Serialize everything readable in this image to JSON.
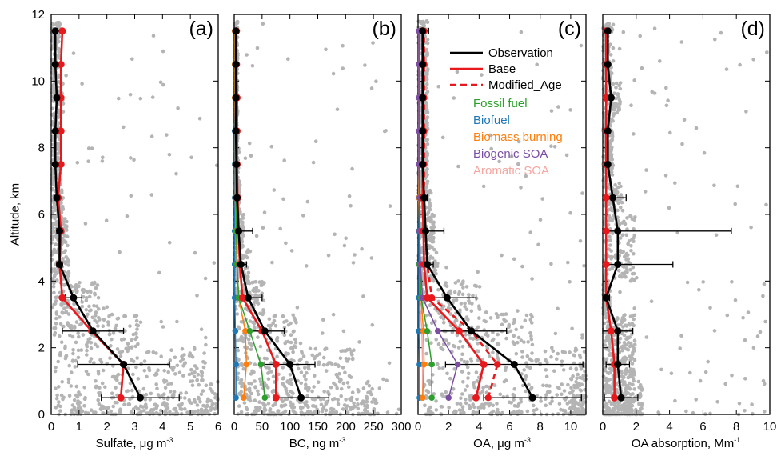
{
  "chart_data": {
    "type": "line",
    "ylabel": "Altitude, km",
    "ylim": [
      0,
      12
    ],
    "yticks": [
      0,
      2,
      4,
      6,
      8,
      10,
      12
    ],
    "altitudes": [
      0.5,
      1.5,
      2.5,
      3.5,
      4.5,
      5.5,
      6.5,
      7.5,
      8.5,
      9.5,
      10.5,
      11.5
    ],
    "legend": {
      "lines": [
        {
          "name": "Observation",
          "color": "#000000",
          "style": "solid"
        },
        {
          "name": "Base",
          "color": "#e8191c",
          "style": "solid"
        },
        {
          "name": "Modified_Age",
          "color": "#e8191c",
          "style": "dashed"
        }
      ],
      "sources": [
        {
          "name": "Fossil fuel",
          "color": "#2ca02c"
        },
        {
          "name": "Biofuel",
          "color": "#1f77b4"
        },
        {
          "name": "Biomass burning",
          "color": "#ff7f0e"
        },
        {
          "name": "Biogenic SOA",
          "color": "#7b4ea3"
        },
        {
          "name": "Aromatic SOA",
          "color": "#f4a6a0"
        }
      ]
    },
    "panels": [
      {
        "label": "(a)",
        "xlabel": "Sulfate, μg m",
        "xlabel_sup": "-3",
        "xlim": [
          0,
          6
        ],
        "xticks": [
          0,
          1,
          2,
          3,
          4,
          5,
          6
        ],
        "observation": [
          3.2,
          2.6,
          1.5,
          0.8,
          0.3,
          0.3,
          0.2,
          0.15,
          0.15,
          0.2,
          0.15,
          0.15
        ],
        "observation_error": [
          1.4,
          1.65,
          1.1,
          0.3,
          0.1,
          0.1,
          0.1,
          0.05,
          0.05,
          0.05,
          0.05,
          0.05
        ],
        "base": [
          2.5,
          2.6,
          1.45,
          0.4,
          0.3,
          0.35,
          0.25,
          0.35,
          0.35,
          0.35,
          0.35,
          0.4
        ],
        "scatter_xmax": 6
      },
      {
        "label": "(b)",
        "xlabel": "BC, ng m",
        "xlabel_sup": "-3",
        "xlim": [
          0,
          300
        ],
        "xticks": [
          0,
          50,
          100,
          150,
          200,
          250,
          300
        ],
        "observation": [
          120,
          100,
          55,
          25,
          12,
          8,
          5,
          4,
          3,
          3,
          3,
          3
        ],
        "observation_error": [
          50,
          45,
          35,
          25,
          10,
          25,
          3,
          2,
          2,
          2,
          2,
          2
        ],
        "base": [
          75,
          75,
          50,
          15,
          10,
          8,
          6,
          5,
          5,
          5,
          4,
          4
        ],
        "fossil": [
          55,
          48,
          28,
          8,
          5,
          4,
          3,
          3,
          3,
          2,
          2,
          2
        ],
        "biofuel": [
          3,
          3,
          2,
          1,
          1,
          1,
          1,
          1,
          1,
          1,
          1,
          1
        ],
        "biomass": [
          17,
          22,
          20,
          8,
          5,
          3,
          2,
          2,
          2,
          1,
          1,
          1
        ],
        "scatter_xmax": 300
      },
      {
        "label": "(c)",
        "xlabel": "OA, μg m",
        "xlabel_sup": "-3",
        "xlim": [
          0,
          11
        ],
        "xticks": [
          0,
          2,
          4,
          6,
          8,
          10
        ],
        "observation": [
          7.5,
          6.3,
          3.5,
          1.9,
          0.6,
          0.5,
          0.4,
          0.3,
          0.3,
          0.3,
          0.3,
          0.3
        ],
        "observation_error": [
          3.2,
          4.5,
          2.3,
          1.9,
          0.4,
          1.2,
          0.2,
          0.1,
          0.1,
          0.1,
          0.1,
          0.4
        ],
        "base": [
          3.8,
          4.3,
          2.7,
          0.6,
          0.4,
          0.35,
          0.3,
          0.3,
          0.3,
          0.3,
          0.3,
          0.3
        ],
        "modified_age": [
          4.6,
          5.2,
          3.5,
          0.9,
          0.6,
          0.5,
          0.4,
          0.4,
          0.4,
          0.4,
          0.4,
          0.4
        ],
        "fossil": [
          0.9,
          0.9,
          0.6,
          0.2,
          0.1,
          0.1,
          0.1,
          0.1,
          0.1,
          0.1,
          0.1,
          0.1
        ],
        "biofuel": [
          0.1,
          0.1,
          0.05,
          0.05,
          0.05,
          0.05,
          0.05,
          0.05,
          0.05,
          0.05,
          0.05,
          0.05
        ],
        "biomass": [
          0.3,
          0.4,
          0.35,
          0.2,
          0.1,
          0.1,
          0.05,
          0.05,
          0.05,
          0.05,
          0.05,
          0.05
        ],
        "biogenic": [
          2.0,
          2.6,
          1.3,
          0.3,
          0.15,
          0.1,
          0.1,
          0.05,
          0.05,
          0.05,
          0.05,
          0.05
        ],
        "aromatic": [
          0.3,
          0.3,
          0.25,
          0.1,
          0.1,
          0.1,
          0.05,
          0.05,
          0.05,
          0.05,
          0.05,
          0.05
        ],
        "scatter_xmax": 11
      },
      {
        "label": "(d)",
        "xlabel": "OA absorption, Mm",
        "xlabel_sup": "-1",
        "xlim": [
          0,
          10
        ],
        "xticks": [
          0,
          2,
          4,
          6,
          8,
          10
        ],
        "observation": [
          1.1,
          0.9,
          0.9,
          0.2,
          0.9,
          0.9,
          0.6,
          0.3,
          0.3,
          0.5,
          0.3,
          0.3
        ],
        "observation_error": [
          1.0,
          0.7,
          0.9,
          0.2,
          3.3,
          6.8,
          0.8,
          0.1,
          0.1,
          0.1,
          0.1,
          0.1
        ],
        "base": [
          0.7,
          0.7,
          0.5,
          0.2,
          0.2,
          0.2,
          0.2,
          0.2,
          0.2,
          0.2,
          0.2,
          0.2
        ],
        "scatter_xmax": 10
      }
    ]
  }
}
